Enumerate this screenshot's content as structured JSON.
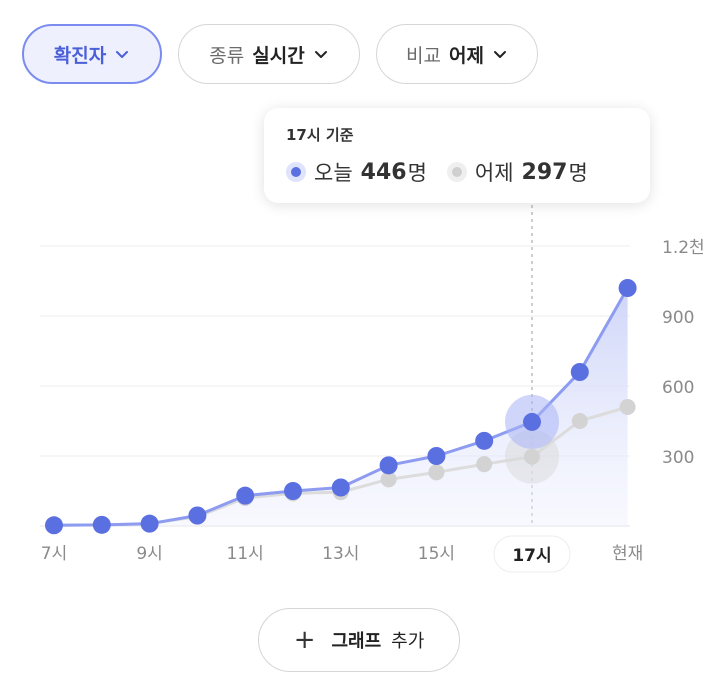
{
  "filters": {
    "metric": {
      "value": "확진자"
    },
    "type": {
      "label": "종류",
      "value": "실시간"
    },
    "compare": {
      "label": "비교",
      "value": "어제"
    }
  },
  "tooltip": {
    "title": "17시 기준",
    "today_label": "오늘",
    "today_value": "446",
    "yesterday_label": "어제",
    "yesterday_value": "297",
    "unit": "명"
  },
  "add_button": {
    "bold": "그래프",
    "rest": "추가"
  },
  "colors": {
    "today": "#5a6fe0",
    "yesterday": "#d3d3d3",
    "accent": "#4a5fd8"
  },
  "chart_data": {
    "type": "line",
    "x": [
      "7시",
      "8시",
      "9시",
      "10시",
      "11시",
      "12시",
      "13시",
      "14시",
      "15시",
      "16시",
      "17시",
      "18시",
      "현재"
    ],
    "x_tick_labels": [
      "7시",
      "9시",
      "11시",
      "13시",
      "15시",
      "17시",
      "현재"
    ],
    "y_tick_labels": [
      "300",
      "600",
      "900",
      "1.2천"
    ],
    "ylim": [
      0,
      1200
    ],
    "highlight_x": "17시",
    "series": [
      {
        "name": "오늘",
        "values": [
          3,
          5,
          10,
          45,
          130,
          150,
          165,
          260,
          300,
          365,
          446,
          660,
          1020
        ]
      },
      {
        "name": "어제",
        "values": [
          3,
          5,
          10,
          40,
          120,
          140,
          145,
          200,
          230,
          265,
          297,
          450,
          510
        ]
      }
    ],
    "grid": true,
    "area_fill": true
  }
}
